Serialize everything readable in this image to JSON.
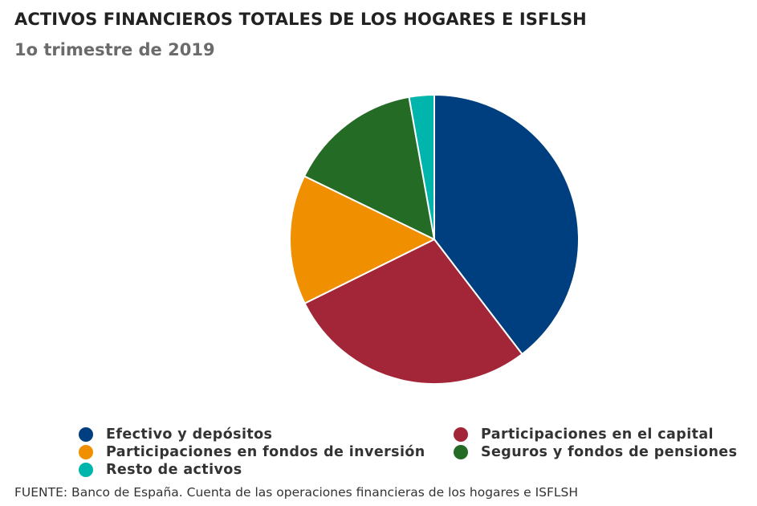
{
  "header": {
    "title": "ACTIVOS FINANCIEROS TOTALES DE LOS HOGARES E ISFLSH",
    "subtitle": "1o trimestre de 2019"
  },
  "chart_data": {
    "type": "pie",
    "title": "ACTIVOS FINANCIEROS TOTALES DE LOS HOGARES E ISFLSH",
    "subtitle": "1o trimestre de 2019",
    "start_angle": "12 o'clock",
    "direction": "clockwise",
    "unit": "%",
    "legend_position": "bottom",
    "slices": [
      {
        "label": "Efectivo y depósitos",
        "value": 39.6,
        "color": "#003F7F"
      },
      {
        "label": "Participaciones en el capital",
        "value": 28.1,
        "color": "#A32638"
      },
      {
        "label": "Participaciones en fondos de inversión",
        "value": 14.5,
        "color": "#F08F00"
      },
      {
        "label": "Seguros y fondos de pensiones",
        "value": 15.0,
        "color": "#246B25"
      },
      {
        "label": "Resto de activos",
        "value": 2.8,
        "color": "#00B5AC"
      }
    ]
  },
  "footer": {
    "source": "FUENTE: Banco de España. Cuenta de las operaciones financieras de los hogares e ISFLSH"
  }
}
